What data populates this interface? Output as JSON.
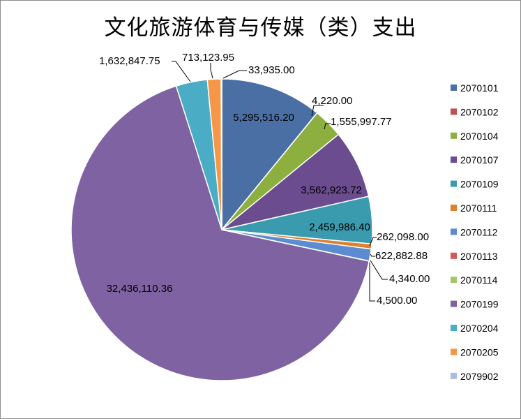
{
  "chart_data": {
    "type": "pie",
    "title": "文化旅游体育与传媒（类）支出",
    "start_angle_deg": 0,
    "direction": "clockwise",
    "legend_position": "right",
    "slices": [
      {
        "name": "2070101",
        "value": 5295516.2,
        "label": "5,295,516.20",
        "color": "#4A6FA5"
      },
      {
        "name": "2070102",
        "value": 4220.0,
        "label": "4,220.00",
        "color": "#C0504D"
      },
      {
        "name": "2070104",
        "value": 1555997.77,
        "label": "1,555,997.77",
        "color": "#8DAF3F"
      },
      {
        "name": "2070107",
        "value": 3562923.72,
        "label": "3,562,923.72",
        "color": "#6A4C8F"
      },
      {
        "name": "2070109",
        "value": 2459986.4,
        "label": "2,459,986.40",
        "color": "#3A9BAF"
      },
      {
        "name": "2070111",
        "value": 262098.0,
        "label": "262,098.00",
        "color": "#E07F2E"
      },
      {
        "name": "2070112",
        "value": 622882.88,
        "label": "622,882.88",
        "color": "#5B8BD0"
      },
      {
        "name": "2070113",
        "value": 4340.0,
        "label": "4,340.00",
        "color": "#D25957"
      },
      {
        "name": "2070114",
        "value": 4500.0,
        "label": "4,500.00",
        "color": "#A3C66A"
      },
      {
        "name": "2070199",
        "value": 32436110.36,
        "label": "32,436,110.36",
        "color": "#7E62A1"
      },
      {
        "name": "2070204",
        "value": 1632847.75,
        "label": "1,632,847.75",
        "color": "#4BACC6"
      },
      {
        "name": "2070205",
        "value": 713123.95,
        "label": "713,123.95",
        "color": "#F79646"
      },
      {
        "name": "2079902",
        "value": 33935.0,
        "label": "33,935.00",
        "color": "#A9BDE0"
      }
    ]
  }
}
